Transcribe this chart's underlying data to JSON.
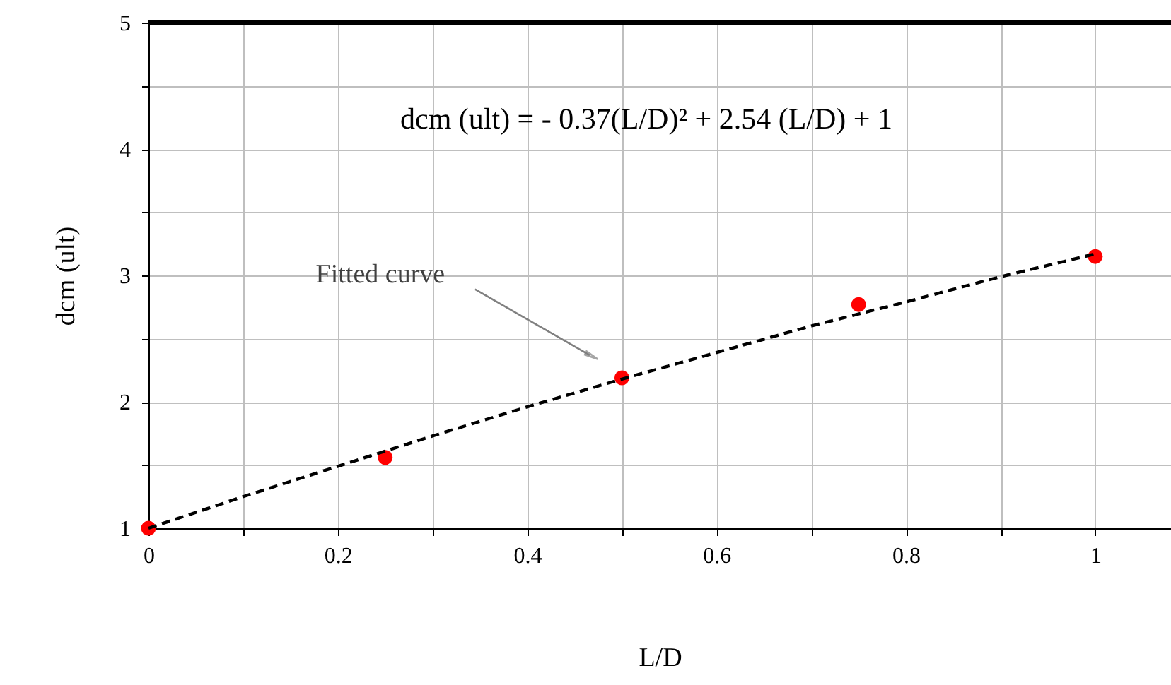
{
  "chart_data": {
    "type": "scatter",
    "xlabel": "L/D",
    "ylabel": "dcm (ult)",
    "xlim": [
      0,
      1.08
    ],
    "ylim": [
      1,
      5
    ],
    "xticks": [
      0,
      {
        "value": 0.1,
        "label": null
      },
      0.2,
      {
        "value": 0.3,
        "label": null
      },
      0.4,
      {
        "value": 0.5,
        "label": null
      },
      0.6,
      {
        "value": 0.7,
        "label": null
      },
      0.8,
      {
        "value": 0.9,
        "label": null
      },
      1
    ],
    "yticks": [
      1,
      {
        "value": 1.5,
        "label": null
      },
      2,
      {
        "value": 2.5,
        "label": null
      },
      3,
      {
        "value": 3.5,
        "label": null
      },
      4,
      {
        "value": 4.5,
        "label": null
      },
      5
    ],
    "grid": true,
    "marker": "circle",
    "x": [
      0,
      0.25,
      0.5,
      0.75,
      1
    ],
    "series": [
      {
        "color": "#ff0000",
        "values": [
          1,
          1.56,
          2.19,
          2.77,
          3.15
        ]
      },
      {
        "type": "line",
        "color": "#000000",
        "line_style": "dashed",
        "marker": "none",
        "x": [
          0,
          0.1,
          0.2,
          0.3,
          0.4,
          0.5,
          0.6,
          0.7,
          0.8,
          0.9,
          1
        ],
        "values": [
          1,
          1.25,
          1.49,
          1.73,
          1.96,
          2.18,
          2.39,
          2.6,
          2.79,
          2.99,
          3.17
        ]
      }
    ],
    "annotations": [
      "dcm (ult) = - 0.37(L/D)² + 2.54 (L/D) + 1",
      {
        "text": "Fitted curve",
        "x": 0.466,
        "y": 2.37
      }
    ]
  }
}
